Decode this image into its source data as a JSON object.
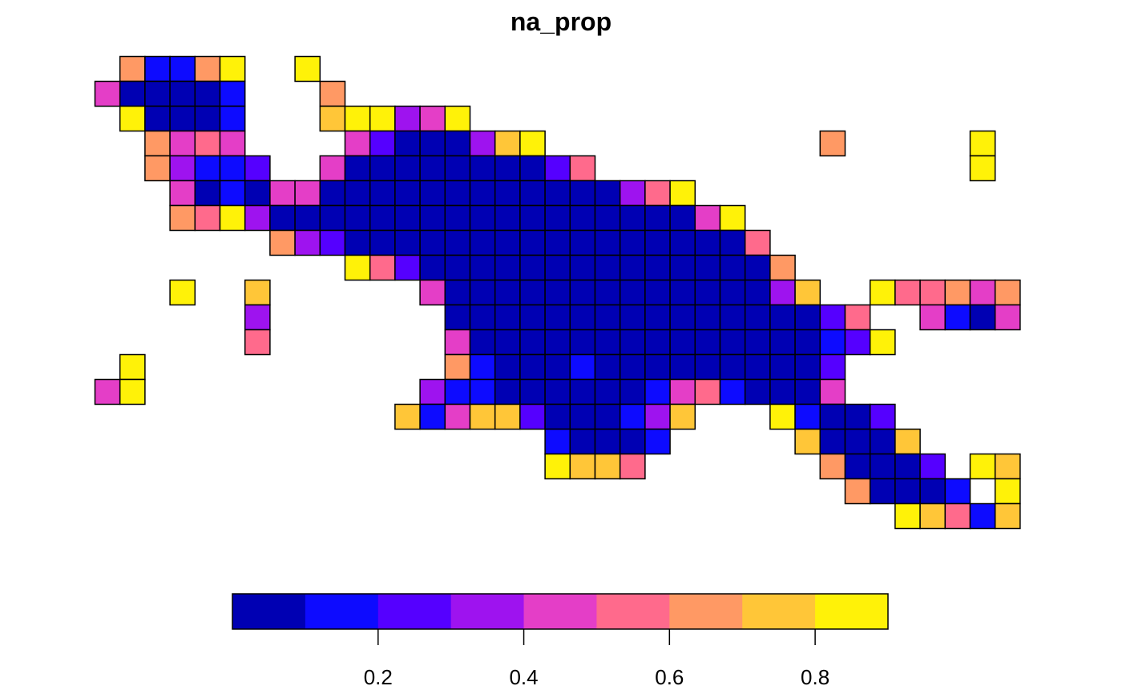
{
  "title": "na_prop",
  "chart_data": {
    "type": "heatmap",
    "title": "na_prop",
    "variable": "na_prop",
    "grid_origin": "top-left",
    "columns": 38,
    "rows": 19,
    "breaks": [
      0.0,
      0.1,
      0.2,
      0.3,
      0.4,
      0.5,
      0.6,
      0.7,
      0.8,
      0.9
    ],
    "palette": [
      "#0000B3",
      "#0D0BFF",
      "#5500FF",
      "#9E13EF",
      "#E43EC7",
      "#FF6A8C",
      "#FF9964",
      "#FFC638",
      "#FFF208"
    ],
    "legend": {
      "position": "bottom",
      "tick_values": [
        0.2,
        0.4,
        0.6,
        0.8
      ],
      "tick_labels": [
        "0.2",
        "0.4",
        "0.6",
        "0.8"
      ]
    },
    "legend_key": "Each row lists [column, class] pairs; class k (1-9) = na_prop in the k-th interval of breaks",
    "cells": [
      [
        [
          1,
          7
        ],
        [
          2,
          2
        ],
        [
          3,
          2
        ],
        [
          4,
          7
        ],
        [
          5,
          9
        ],
        [
          8,
          9
        ]
      ],
      [
        [
          0,
          5
        ],
        [
          1,
          1
        ],
        [
          2,
          1
        ],
        [
          3,
          1
        ],
        [
          4,
          1
        ],
        [
          5,
          2
        ],
        [
          9,
          7
        ]
      ],
      [
        [
          1,
          9
        ],
        [
          2,
          1
        ],
        [
          3,
          1
        ],
        [
          4,
          1
        ],
        [
          5,
          2
        ],
        [
          9,
          8
        ],
        [
          10,
          9
        ],
        [
          11,
          9
        ],
        [
          12,
          4
        ],
        [
          13,
          5
        ],
        [
          14,
          9
        ]
      ],
      [
        [
          2,
          7
        ],
        [
          3,
          5
        ],
        [
          4,
          6
        ],
        [
          5,
          5
        ],
        [
          10,
          5
        ],
        [
          11,
          3
        ],
        [
          12,
          1
        ],
        [
          13,
          1
        ],
        [
          14,
          1
        ],
        [
          15,
          4
        ],
        [
          16,
          8
        ],
        [
          17,
          9
        ],
        [
          29,
          7
        ],
        [
          35,
          9
        ]
      ],
      [
        [
          2,
          7
        ],
        [
          3,
          4
        ],
        [
          4,
          2
        ],
        [
          5,
          2
        ],
        [
          6,
          3
        ],
        [
          9,
          5
        ],
        [
          10,
          1
        ],
        [
          11,
          1
        ],
        [
          12,
          1
        ],
        [
          13,
          1
        ],
        [
          14,
          1
        ],
        [
          15,
          1
        ],
        [
          16,
          1
        ],
        [
          17,
          1
        ],
        [
          18,
          3
        ],
        [
          19,
          6
        ],
        [
          35,
          9
        ]
      ],
      [
        [
          3,
          5
        ],
        [
          4,
          1
        ],
        [
          5,
          2
        ],
        [
          6,
          1
        ],
        [
          7,
          5
        ],
        [
          8,
          5
        ],
        [
          9,
          1
        ],
        [
          10,
          1
        ],
        [
          11,
          1
        ],
        [
          12,
          1
        ],
        [
          13,
          1
        ],
        [
          14,
          1
        ],
        [
          15,
          1
        ],
        [
          16,
          1
        ],
        [
          17,
          1
        ],
        [
          18,
          1
        ],
        [
          19,
          1
        ],
        [
          20,
          1
        ],
        [
          21,
          4
        ],
        [
          22,
          6
        ],
        [
          23,
          9
        ]
      ],
      [
        [
          3,
          7
        ],
        [
          4,
          6
        ],
        [
          5,
          9
        ],
        [
          6,
          4
        ],
        [
          7,
          1
        ],
        [
          8,
          1
        ],
        [
          9,
          1
        ],
        [
          10,
          1
        ],
        [
          11,
          1
        ],
        [
          12,
          1
        ],
        [
          13,
          1
        ],
        [
          14,
          1
        ],
        [
          15,
          1
        ],
        [
          16,
          1
        ],
        [
          17,
          1
        ],
        [
          18,
          1
        ],
        [
          19,
          1
        ],
        [
          20,
          1
        ],
        [
          21,
          1
        ],
        [
          22,
          1
        ],
        [
          23,
          1
        ],
        [
          24,
          5
        ],
        [
          25,
          9
        ]
      ],
      [
        [
          7,
          7
        ],
        [
          8,
          4
        ],
        [
          9,
          3
        ],
        [
          10,
          1
        ],
        [
          11,
          1
        ],
        [
          12,
          1
        ],
        [
          13,
          1
        ],
        [
          14,
          1
        ],
        [
          15,
          1
        ],
        [
          16,
          1
        ],
        [
          17,
          1
        ],
        [
          18,
          1
        ],
        [
          19,
          1
        ],
        [
          20,
          1
        ],
        [
          21,
          1
        ],
        [
          22,
          1
        ],
        [
          23,
          1
        ],
        [
          24,
          1
        ],
        [
          25,
          1
        ],
        [
          26,
          6
        ]
      ],
      [
        [
          10,
          9
        ],
        [
          11,
          6
        ],
        [
          12,
          3
        ],
        [
          13,
          1
        ],
        [
          14,
          1
        ],
        [
          15,
          1
        ],
        [
          16,
          1
        ],
        [
          17,
          1
        ],
        [
          18,
          1
        ],
        [
          19,
          1
        ],
        [
          20,
          1
        ],
        [
          21,
          1
        ],
        [
          22,
          1
        ],
        [
          23,
          1
        ],
        [
          24,
          1
        ],
        [
          25,
          1
        ],
        [
          26,
          1
        ],
        [
          27,
          7
        ]
      ],
      [
        [
          3,
          9
        ],
        [
          6,
          8
        ],
        [
          13,
          5
        ],
        [
          14,
          1
        ],
        [
          15,
          1
        ],
        [
          16,
          1
        ],
        [
          17,
          1
        ],
        [
          18,
          1
        ],
        [
          19,
          1
        ],
        [
          20,
          1
        ],
        [
          21,
          1
        ],
        [
          22,
          1
        ],
        [
          23,
          1
        ],
        [
          24,
          1
        ],
        [
          25,
          1
        ],
        [
          26,
          1
        ],
        [
          27,
          4
        ],
        [
          28,
          8
        ],
        [
          31,
          9
        ],
        [
          32,
          6
        ],
        [
          33,
          6
        ],
        [
          34,
          7
        ],
        [
          35,
          5
        ],
        [
          36,
          7
        ]
      ],
      [
        [
          6,
          4
        ],
        [
          14,
          1
        ],
        [
          15,
          1
        ],
        [
          16,
          1
        ],
        [
          17,
          1
        ],
        [
          18,
          1
        ],
        [
          19,
          1
        ],
        [
          20,
          1
        ],
        [
          21,
          1
        ],
        [
          22,
          1
        ],
        [
          23,
          1
        ],
        [
          24,
          1
        ],
        [
          25,
          1
        ],
        [
          26,
          1
        ],
        [
          27,
          1
        ],
        [
          28,
          1
        ],
        [
          29,
          3
        ],
        [
          30,
          6
        ],
        [
          33,
          5
        ],
        [
          34,
          2
        ],
        [
          35,
          1
        ],
        [
          36,
          5
        ]
      ],
      [
        [
          6,
          6
        ],
        [
          14,
          5
        ],
        [
          15,
          1
        ],
        [
          16,
          1
        ],
        [
          17,
          1
        ],
        [
          18,
          1
        ],
        [
          19,
          1
        ],
        [
          20,
          1
        ],
        [
          21,
          1
        ],
        [
          22,
          1
        ],
        [
          23,
          1
        ],
        [
          24,
          1
        ],
        [
          25,
          1
        ],
        [
          26,
          1
        ],
        [
          27,
          1
        ],
        [
          28,
          1
        ],
        [
          29,
          2
        ],
        [
          30,
          3
        ],
        [
          31,
          9
        ]
      ],
      [
        [
          1,
          9
        ],
        [
          14,
          7
        ],
        [
          15,
          2
        ],
        [
          16,
          1
        ],
        [
          17,
          1
        ],
        [
          18,
          1
        ],
        [
          19,
          2
        ],
        [
          20,
          1
        ],
        [
          21,
          1
        ],
        [
          22,
          1
        ],
        [
          23,
          1
        ],
        [
          24,
          1
        ],
        [
          25,
          1
        ],
        [
          26,
          1
        ],
        [
          27,
          1
        ],
        [
          28,
          1
        ],
        [
          29,
          3
        ]
      ],
      [
        [
          0,
          5
        ],
        [
          1,
          9
        ],
        [
          13,
          4
        ],
        [
          14,
          2
        ],
        [
          15,
          2
        ],
        [
          16,
          1
        ],
        [
          17,
          1
        ],
        [
          18,
          1
        ],
        [
          19,
          1
        ],
        [
          20,
          1
        ],
        [
          21,
          1
        ],
        [
          22,
          2
        ],
        [
          23,
          5
        ],
        [
          24,
          6
        ],
        [
          25,
          2
        ],
        [
          26,
          1
        ],
        [
          27,
          1
        ],
        [
          28,
          1
        ],
        [
          29,
          5
        ]
      ],
      [
        [
          12,
          8
        ],
        [
          13,
          2
        ],
        [
          14,
          5
        ],
        [
          15,
          8
        ],
        [
          16,
          8
        ],
        [
          17,
          3
        ],
        [
          18,
          1
        ],
        [
          19,
          1
        ],
        [
          20,
          1
        ],
        [
          21,
          2
        ],
        [
          22,
          4
        ],
        [
          23,
          8
        ],
        [
          27,
          9
        ],
        [
          28,
          2
        ],
        [
          29,
          1
        ],
        [
          30,
          1
        ],
        [
          31,
          3
        ]
      ],
      [
        [
          18,
          2
        ],
        [
          19,
          1
        ],
        [
          20,
          1
        ],
        [
          21,
          1
        ],
        [
          22,
          2
        ],
        [
          28,
          8
        ],
        [
          29,
          1
        ],
        [
          30,
          1
        ],
        [
          31,
          1
        ],
        [
          32,
          8
        ]
      ],
      [
        [
          18,
          9
        ],
        [
          19,
          8
        ],
        [
          20,
          8
        ],
        [
          21,
          6
        ],
        [
          29,
          7
        ],
        [
          30,
          1
        ],
        [
          31,
          1
        ],
        [
          32,
          1
        ],
        [
          33,
          3
        ],
        [
          35,
          9
        ],
        [
          36,
          8
        ]
      ],
      [
        [
          30,
          7
        ],
        [
          31,
          1
        ],
        [
          32,
          1
        ],
        [
          33,
          1
        ],
        [
          34,
          2
        ],
        [
          36,
          9
        ]
      ],
      [
        [
          32,
          9
        ],
        [
          33,
          8
        ],
        [
          34,
          6
        ],
        [
          35,
          2
        ],
        [
          36,
          8
        ]
      ]
    ]
  }
}
